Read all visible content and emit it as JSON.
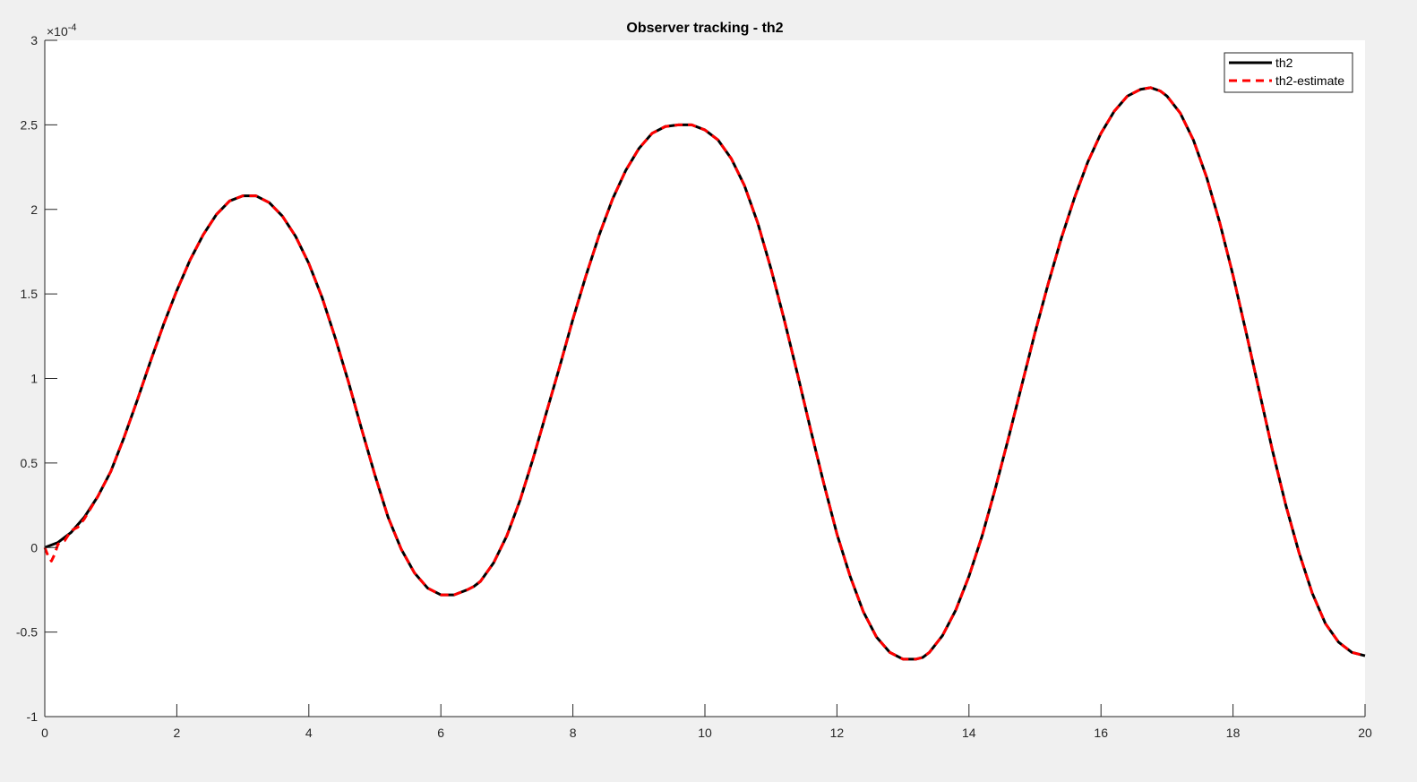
{
  "chart_data": {
    "type": "line",
    "title": "Observer tracking - th2",
    "xlabel": "",
    "ylabel": "",
    "xlim": [
      0,
      20
    ],
    "ylim": [
      -1,
      3
    ],
    "x_ticks": [
      0,
      2,
      4,
      6,
      8,
      10,
      12,
      14,
      16,
      18,
      20
    ],
    "x_tick_labels": [
      "0",
      "2",
      "4",
      "6",
      "8",
      "10",
      "12",
      "14",
      "16",
      "18",
      "20"
    ],
    "y_ticks": [
      -1,
      -0.5,
      0,
      0.5,
      1,
      1.5,
      2,
      2.5,
      3
    ],
    "y_tick_labels": [
      "-1",
      "-0.5",
      "0",
      "0.5",
      "1",
      "1.5",
      "2",
      "2.5",
      "3"
    ],
    "y_exponent_label": "×10",
    "y_exponent_power": "-4",
    "grid": false,
    "legend_position": "top-right",
    "series": [
      {
        "name": "th2",
        "color": "#000000",
        "style": "solid",
        "x": [
          0,
          0.2,
          0.4,
          0.6,
          0.8,
          1.0,
          1.2,
          1.4,
          1.6,
          1.8,
          2.0,
          2.2,
          2.4,
          2.6,
          2.8,
          3.0,
          3.2,
          3.4,
          3.6,
          3.8,
          4.0,
          4.2,
          4.4,
          4.6,
          4.8,
          5.0,
          5.2,
          5.4,
          5.6,
          5.8,
          6.0,
          6.2,
          6.4,
          6.5,
          6.6,
          6.8,
          7.0,
          7.2,
          7.4,
          7.6,
          7.8,
          8.0,
          8.2,
          8.4,
          8.6,
          8.8,
          9.0,
          9.2,
          9.4,
          9.6,
          9.8,
          10.0,
          10.2,
          10.4,
          10.6,
          10.8,
          11.0,
          11.2,
          11.4,
          11.6,
          11.8,
          12.0,
          12.2,
          12.4,
          12.6,
          12.8,
          13.0,
          13.2,
          13.3,
          13.4,
          13.6,
          13.8,
          14.0,
          14.2,
          14.4,
          14.6,
          14.8,
          15.0,
          15.2,
          15.4,
          15.6,
          15.8,
          16.0,
          16.2,
          16.4,
          16.6,
          16.75,
          16.9,
          17.0,
          17.2,
          17.4,
          17.6,
          17.8,
          18.0,
          18.2,
          18.4,
          18.6,
          18.8,
          19.0,
          19.2,
          19.4,
          19.6,
          19.8,
          20.0
        ],
        "values": [
          0,
          0.03,
          0.09,
          0.18,
          0.3,
          0.45,
          0.65,
          0.87,
          1.1,
          1.32,
          1.52,
          1.7,
          1.85,
          1.97,
          2.05,
          2.08,
          2.08,
          2.04,
          1.96,
          1.84,
          1.68,
          1.48,
          1.24,
          0.98,
          0.7,
          0.43,
          0.18,
          -0.01,
          -0.15,
          -0.24,
          -0.28,
          -0.28,
          -0.25,
          -0.23,
          -0.2,
          -0.09,
          0.07,
          0.28,
          0.53,
          0.8,
          1.07,
          1.35,
          1.61,
          1.85,
          2.06,
          2.23,
          2.36,
          2.45,
          2.49,
          2.5,
          2.5,
          2.47,
          2.41,
          2.3,
          2.14,
          1.92,
          1.65,
          1.35,
          1.03,
          0.7,
          0.38,
          0.08,
          -0.17,
          -0.38,
          -0.53,
          -0.62,
          -0.66,
          -0.66,
          -0.65,
          -0.62,
          -0.52,
          -0.37,
          -0.17,
          0.07,
          0.35,
          0.65,
          0.96,
          1.27,
          1.56,
          1.83,
          2.07,
          2.28,
          2.45,
          2.58,
          2.67,
          2.71,
          2.72,
          2.7,
          2.67,
          2.57,
          2.41,
          2.19,
          1.92,
          1.61,
          1.27,
          0.92,
          0.57,
          0.25,
          -0.03,
          -0.27,
          -0.45,
          -0.56,
          -0.62,
          -0.64
        ]
      },
      {
        "name": "th2-estimate",
        "color": "#ff0000",
        "style": "dashed",
        "x": [
          0,
          0.05,
          0.1,
          0.15,
          0.2,
          0.3,
          0.4,
          0.5,
          0.6,
          0.8,
          1.0,
          1.2,
          1.4,
          1.6,
          1.8,
          2.0,
          2.2,
          2.4,
          2.6,
          2.8,
          3.0,
          3.2,
          3.4,
          3.6,
          3.8,
          4.0,
          4.2,
          4.4,
          4.6,
          4.8,
          5.0,
          5.2,
          5.4,
          5.6,
          5.8,
          6.0,
          6.2,
          6.4,
          6.5,
          6.6,
          6.8,
          7.0,
          7.2,
          7.4,
          7.6,
          7.8,
          8.0,
          8.2,
          8.4,
          8.6,
          8.8,
          9.0,
          9.2,
          9.4,
          9.6,
          9.8,
          10.0,
          10.2,
          10.4,
          10.6,
          10.8,
          11.0,
          11.2,
          11.4,
          11.6,
          11.8,
          12.0,
          12.2,
          12.4,
          12.6,
          12.8,
          13.0,
          13.2,
          13.3,
          13.4,
          13.6,
          13.8,
          14.0,
          14.2,
          14.4,
          14.6,
          14.8,
          15.0,
          15.2,
          15.4,
          15.6,
          15.8,
          16.0,
          16.2,
          16.4,
          16.6,
          16.75,
          16.9,
          17.0,
          17.2,
          17.4,
          17.6,
          17.8,
          18.0,
          18.2,
          18.4,
          18.6,
          18.8,
          19.0,
          19.2,
          19.4,
          19.6,
          19.8,
          20.0
        ],
        "values": [
          0,
          -0.05,
          -0.08,
          -0.04,
          0.02,
          0.04,
          0.1,
          0.12,
          0.17,
          0.3,
          0.45,
          0.65,
          0.87,
          1.1,
          1.32,
          1.52,
          1.7,
          1.85,
          1.97,
          2.05,
          2.08,
          2.08,
          2.04,
          1.96,
          1.84,
          1.68,
          1.48,
          1.24,
          0.98,
          0.7,
          0.43,
          0.18,
          -0.01,
          -0.15,
          -0.24,
          -0.28,
          -0.28,
          -0.25,
          -0.23,
          -0.2,
          -0.09,
          0.07,
          0.28,
          0.53,
          0.8,
          1.07,
          1.35,
          1.61,
          1.85,
          2.06,
          2.23,
          2.36,
          2.45,
          2.49,
          2.5,
          2.5,
          2.47,
          2.41,
          2.3,
          2.14,
          1.92,
          1.65,
          1.35,
          1.03,
          0.7,
          0.38,
          0.08,
          -0.17,
          -0.38,
          -0.53,
          -0.62,
          -0.66,
          -0.66,
          -0.65,
          -0.62,
          -0.52,
          -0.37,
          -0.17,
          0.07,
          0.35,
          0.65,
          0.96,
          1.27,
          1.56,
          1.83,
          2.07,
          2.28,
          2.45,
          2.58,
          2.67,
          2.71,
          2.72,
          2.7,
          2.67,
          2.57,
          2.41,
          2.19,
          1.92,
          1.61,
          1.27,
          0.92,
          0.57,
          0.25,
          -0.03,
          -0.27,
          -0.45,
          -0.56,
          -0.62,
          -0.64
        ]
      }
    ]
  }
}
